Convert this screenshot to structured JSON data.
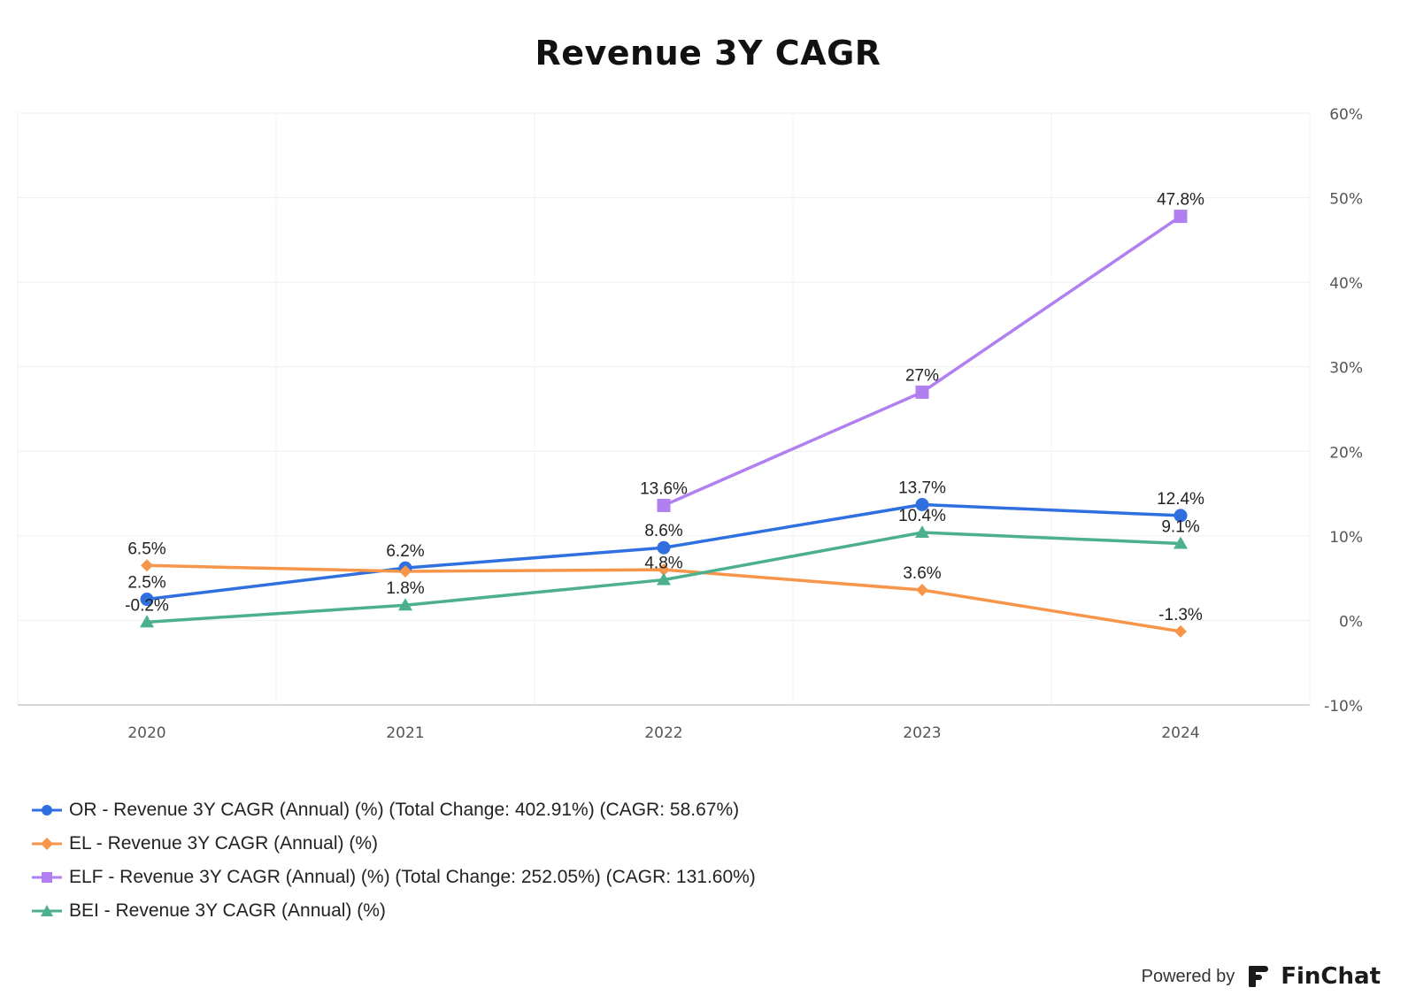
{
  "title": "Revenue 3Y CAGR",
  "chart_data": {
    "type": "line",
    "title": "Revenue 3Y CAGR",
    "xlabel": "",
    "ylabel": "",
    "categories": [
      "2020",
      "2021",
      "2022",
      "2023",
      "2024"
    ],
    "y_axis": {
      "position": "right",
      "ylim": [
        -10,
        60
      ],
      "ticks": [
        60,
        50,
        40,
        30,
        20,
        10,
        0,
        -10
      ],
      "tick_labels": [
        "60%",
        "50%",
        "40%",
        "30%",
        "20%",
        "10%",
        "0%",
        "-10%"
      ]
    },
    "grid": true,
    "legend_position": "bottom-left",
    "series": [
      {
        "name": "OR - Revenue 3Y CAGR (Annual) (%) (Total Change: 402.91%) (CAGR: 58.67%)",
        "color": "#2f6fe0",
        "marker": "circle",
        "values": [
          2.5,
          6.2,
          8.6,
          13.7,
          12.4
        ],
        "labels": [
          "2.5%",
          "6.2%",
          "8.6%",
          "13.7%",
          "12.4%"
        ]
      },
      {
        "name": "EL - Revenue 3Y CAGR (Annual) (%)",
        "color": "#f7954a",
        "marker": "diamond",
        "values": [
          6.5,
          5.8,
          6.0,
          3.6,
          -1.3
        ],
        "labels": [
          "6.5%",
          "",
          "",
          "3.6%",
          "-1.3%"
        ]
      },
      {
        "name": "ELF - Revenue 3Y CAGR (Annual) (%) (Total Change: 252.05%) (CAGR: 131.60%)",
        "color": "#b07ff0",
        "marker": "square",
        "values": [
          null,
          null,
          13.6,
          27,
          47.8
        ],
        "labels": [
          "",
          "",
          "13.6%",
          "27%",
          "47.8%"
        ]
      },
      {
        "name": "BEI - Revenue 3Y CAGR (Annual) (%)",
        "color": "#4caf8d",
        "marker": "triangle",
        "values": [
          -0.2,
          1.8,
          4.8,
          10.4,
          9.1
        ],
        "labels": [
          "-0.2%",
          "1.8%",
          "4.8%",
          "10.4%",
          "9.1%"
        ]
      }
    ]
  },
  "footer": {
    "powered_by": "Powered by",
    "brand": "FinChat"
  }
}
